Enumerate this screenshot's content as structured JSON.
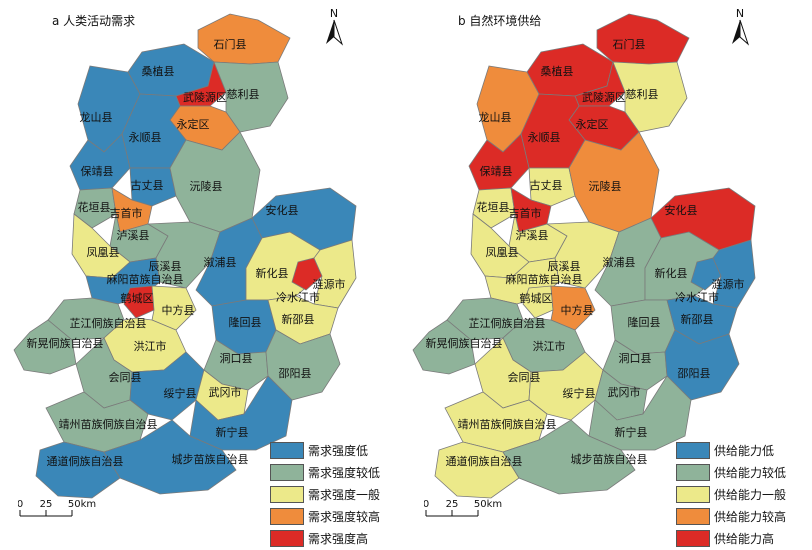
{
  "panels": [
    {
      "id": "a",
      "title": "a  人类活动需求",
      "legend": [
        {
          "label": "需求强度低",
          "color": "#3a87b8"
        },
        {
          "label": "需求强度较低",
          "color": "#8fb39a"
        },
        {
          "label": "需求强度一般",
          "color": "#ece98a"
        },
        {
          "label": "需求强度较高",
          "color": "#ef8c3c"
        },
        {
          "label": "需求强度高",
          "color": "#dc2b26"
        }
      ]
    },
    {
      "id": "b",
      "title": "b  自然环境供给",
      "legend": [
        {
          "label": "供给能力低",
          "color": "#3a87b8"
        },
        {
          "label": "供给能力较低",
          "color": "#8fb39a"
        },
        {
          "label": "供给能力一般",
          "color": "#ece98a"
        },
        {
          "label": "供给能力较高",
          "color": "#ef8c3c"
        },
        {
          "label": "供给能力高",
          "color": "#dc2b26"
        }
      ]
    }
  ],
  "county_labels": [
    "石门县",
    "桑植县",
    "武陵源区",
    "慈利县",
    "龙山县",
    "永定区",
    "永顺县",
    "保靖县",
    "古丈县",
    "沅陵县",
    "花垣县",
    "吉首市",
    "泸溪县",
    "安化县",
    "凤凰县",
    "辰溪县",
    "溆浦县",
    "新化县",
    "麻阳苗族自治县",
    "鹤城区",
    "中方县",
    "冷水江市",
    "涟源市",
    "芷江侗族自治县",
    "隆回县",
    "新邵县",
    "新晃侗族自治县",
    "洪江市",
    "洞口县",
    "会同县",
    "邵阳县",
    "绥宁县",
    "武冈市",
    "靖州苗族侗族自治县",
    "新宁县",
    "通道侗族自治县",
    "城步苗族自治县"
  ],
  "north_label": "N",
  "scale": {
    "ticks": [
      "0",
      "25",
      "50km"
    ]
  }
}
